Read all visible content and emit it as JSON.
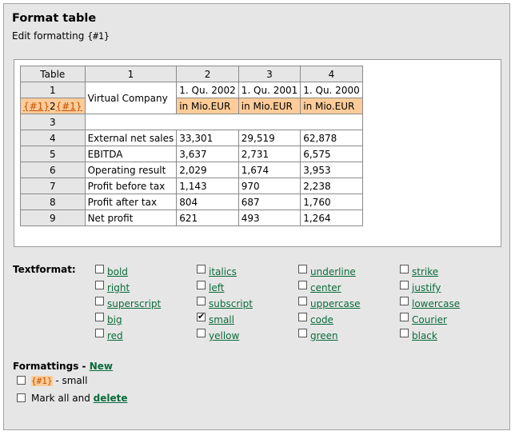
{
  "header": {
    "title": "Format table",
    "subtitle_prefix": "Edit formatting",
    "subtitle_tag": "{#1}"
  },
  "table": {
    "col_headers": [
      "Table",
      "1",
      "2",
      "3",
      "4"
    ],
    "row1": {
      "num": "1",
      "company": "Virtual Company",
      "periods": [
        "1. Qu. 2002",
        "1. Qu. 2001",
        "1. Qu. 2000"
      ]
    },
    "row2": {
      "tag_open": "{#1}",
      "num": "2",
      "tag_close": "{#1}",
      "units": [
        "in Mio.EUR",
        "in Mio.EUR",
        "in Mio.EUR"
      ]
    },
    "row3": {
      "num": "3"
    },
    "rows": [
      {
        "num": "4",
        "label": "External net sales",
        "values": [
          "33,301",
          "29,519",
          "62,878"
        ]
      },
      {
        "num": "5",
        "label": "EBITDA",
        "values": [
          "3,637",
          "2,731",
          "6,575"
        ]
      },
      {
        "num": "6",
        "label": "Operating result",
        "values": [
          "2,029",
          "1,674",
          "3,953"
        ]
      },
      {
        "num": "7",
        "label": "Profit before tax",
        "values": [
          "1,143",
          "970",
          "2,238"
        ]
      },
      {
        "num": "8",
        "label": "Profit after tax",
        "values": [
          "804",
          "687",
          "1,760"
        ]
      },
      {
        "num": "9",
        "label": "Net profit",
        "values": [
          "621",
          "493",
          "1,264"
        ]
      }
    ]
  },
  "textformat": {
    "label": "Textformat:",
    "options": [
      {
        "label": "bold",
        "checked": false
      },
      {
        "label": "italics",
        "checked": false
      },
      {
        "label": "underline",
        "checked": false
      },
      {
        "label": "strike",
        "checked": false
      },
      {
        "label": "right",
        "checked": false
      },
      {
        "label": "left",
        "checked": false
      },
      {
        "label": "center",
        "checked": false
      },
      {
        "label": "justify",
        "checked": false
      },
      {
        "label": "superscript",
        "checked": false
      },
      {
        "label": "subscript",
        "checked": false
      },
      {
        "label": "uppercase",
        "checked": false
      },
      {
        "label": "lowercase",
        "checked": false
      },
      {
        "label": "big",
        "checked": false
      },
      {
        "label": "small",
        "checked": true
      },
      {
        "label": "code",
        "checked": false
      },
      {
        "label": "Courier",
        "checked": false
      },
      {
        "label": "red",
        "checked": false
      },
      {
        "label": "yellow",
        "checked": false
      },
      {
        "label": "green",
        "checked": false
      },
      {
        "label": "black",
        "checked": false
      }
    ]
  },
  "formattings": {
    "label": "Formattings -",
    "new_label": "New",
    "item_tag": "{#1}",
    "item_text": "- small",
    "mark_all_text": "Mark all and",
    "delete_label": "delete"
  },
  "colors": {
    "tag_bg": "#ffcc99",
    "tag_text": "#c05000",
    "link": "#0a6b3a",
    "panel_bg": "#e6e6e6"
  }
}
